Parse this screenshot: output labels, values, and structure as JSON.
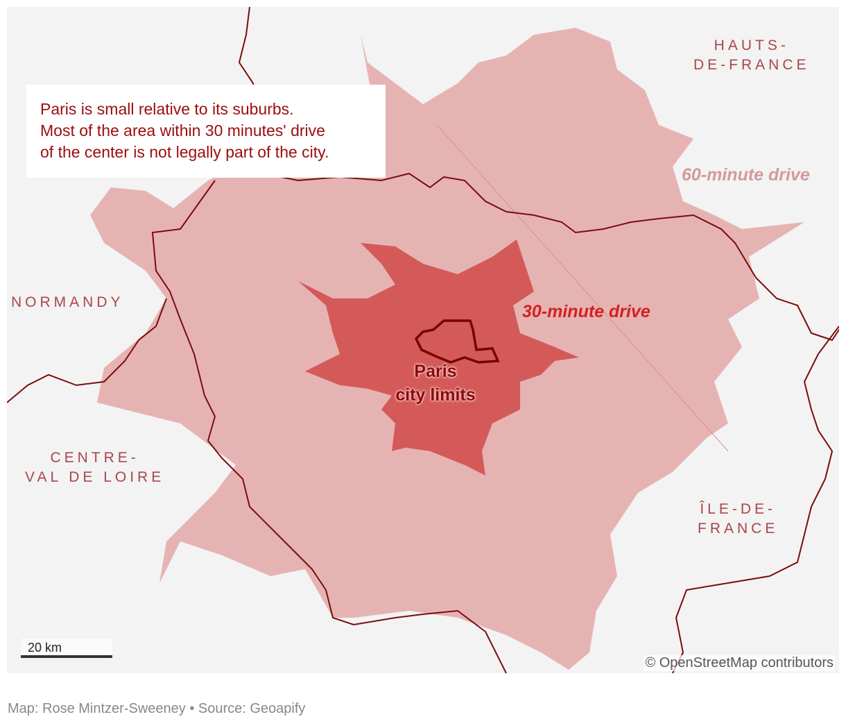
{
  "map": {
    "annotation": [
      "Paris is small relative to its suburbs.",
      "Most of the area within 30 minutes' drive",
      "of the center is not legally part of the city."
    ],
    "regions": {
      "hauts_de_france": [
        "HAUTS-",
        "DE-FRANCE"
      ],
      "normandy": "NORMANDY",
      "centre_val_de_loire": [
        "CENTRE-",
        "VAL DE LOIRE"
      ],
      "ile_de_france": [
        "ÎLE-DE-",
        "FRANCE"
      ]
    },
    "labels": {
      "drive_60": "60-minute drive",
      "drive_30": "30-minute drive",
      "paris": [
        "Paris",
        "city limits"
      ]
    },
    "scale_bar": "20 km",
    "attribution": "© OpenStreetMap contributors",
    "colors": {
      "background": "#f3f3f3",
      "drive_60": "#e6b3b3",
      "drive_30": "#d45a5a",
      "border": "#7a0c0c",
      "paris": "#7a0000",
      "drive_60_label": "#d49a9a",
      "drive_30_label": "#d42020"
    }
  },
  "footer": {
    "credit": "Map: Rose Mintzer-Sweeney • Source: Geoapify"
  }
}
